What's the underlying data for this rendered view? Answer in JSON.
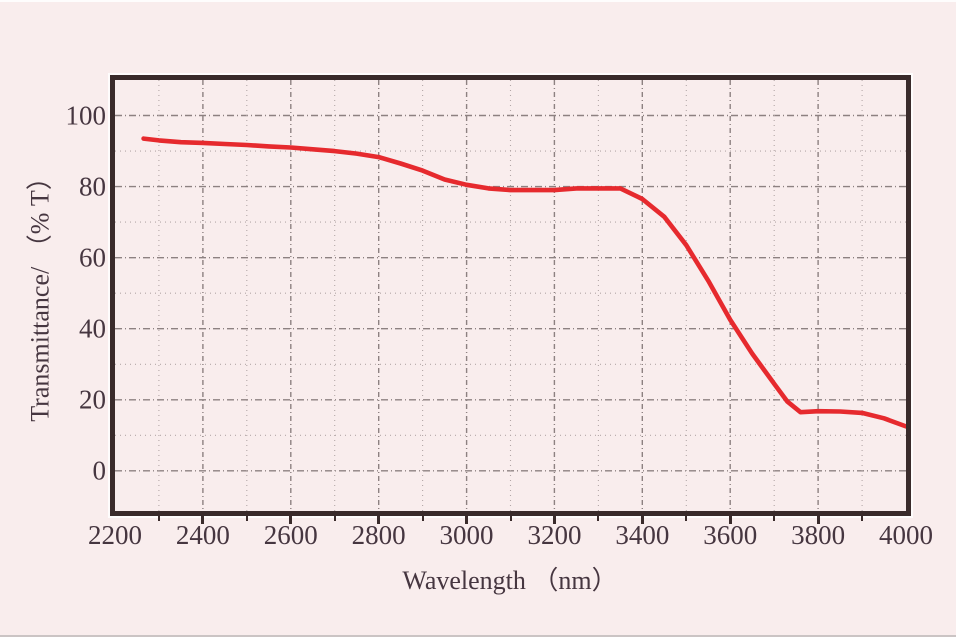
{
  "page": {
    "background_color": "#f9eded",
    "frame_color": "#3a2b2b",
    "text_color": "#463640"
  },
  "chart_data": {
    "type": "line",
    "title": "",
    "xlabel": "Wavelength （nm）",
    "ylabel": "Transmittance/ （% T）",
    "xlim": [
      2200,
      4000
    ],
    "ylim": [
      -11.3,
      110
    ],
    "x_tick_labels": [
      "2200",
      "2400",
      "2600",
      "2800",
      "3000",
      "3200",
      "3400",
      "3600",
      "3800",
      "4000"
    ],
    "x_tick_values": [
      2200,
      2400,
      2600,
      2800,
      3000,
      3200,
      3400,
      3600,
      3800,
      4000
    ],
    "x_minor_tick_step": 100,
    "y_tick_labels": [
      "100",
      "80",
      "60",
      "40",
      "20",
      "0"
    ],
    "y_tick_values": [
      100,
      80,
      60,
      40,
      20,
      0
    ],
    "y_grid_step": 10,
    "x_grid_step": 100,
    "grid": "dotted, major and minor",
    "legend": "none",
    "line_color": "#e62a2e",
    "grid_major_color": "#8d8181",
    "grid_minor_color": "#b3a7a7",
    "series": [
      {
        "name": "transmittance",
        "x": [
          2265,
          2300,
          2350,
          2400,
          2450,
          2500,
          2550,
          2600,
          2650,
          2700,
          2750,
          2800,
          2850,
          2900,
          2950,
          3000,
          3050,
          3100,
          3150,
          3200,
          3250,
          3300,
          3350,
          3400,
          3450,
          3500,
          3550,
          3600,
          3650,
          3700,
          3730,
          3760,
          3800,
          3850,
          3900,
          3950,
          4000
        ],
        "y": [
          93.5,
          93,
          92.5,
          92.3,
          92,
          91.7,
          91.3,
          91,
          90.5,
          90,
          89.3,
          88.3,
          86.5,
          84.5,
          82,
          80.5,
          79.5,
          79,
          79,
          79,
          79.5,
          79.5,
          79.5,
          76.5,
          71.5,
          63.5,
          53.5,
          42.5,
          33,
          24.5,
          19.5,
          16.5,
          16.8,
          16.7,
          16.3,
          14.8,
          12.5
        ]
      }
    ]
  }
}
